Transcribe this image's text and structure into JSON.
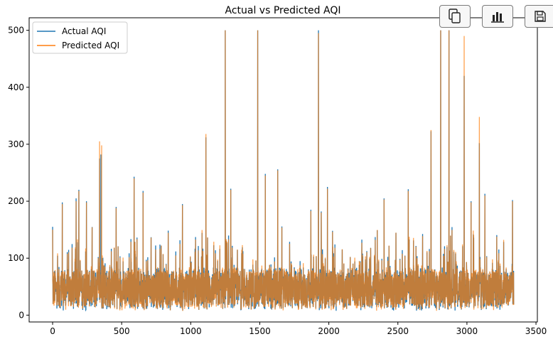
{
  "toolbar": {
    "buttons": [
      {
        "icon": "copy-icon"
      },
      {
        "icon": "bar-chart-icon"
      },
      {
        "icon": "save-icon"
      }
    ]
  },
  "chart_data": {
    "type": "line",
    "title": "Actual vs Predicted AQI",
    "xlabel": "",
    "ylabel": "",
    "xlim": [
      -170,
      3510
    ],
    "ylim": [
      -12,
      522
    ],
    "xticks": [
      0,
      500,
      1000,
      1500,
      2000,
      2500,
      3000,
      3500
    ],
    "yticks": [
      0,
      100,
      200,
      300,
      400,
      500
    ],
    "grid": false,
    "legend": {
      "position": "upper-left"
    },
    "n_points": 3340,
    "baseline_range": [
      12,
      80
    ],
    "series": [
      {
        "name": "Actual AQI",
        "color": "#1f77b4",
        "peaks": [
          [
            0,
            155
          ],
          [
            70,
            198
          ],
          [
            170,
            205
          ],
          [
            190,
            220
          ],
          [
            245,
            200
          ],
          [
            340,
            275
          ],
          [
            350,
            282
          ],
          [
            460,
            190
          ],
          [
            590,
            243
          ],
          [
            655,
            218
          ],
          [
            940,
            195
          ],
          [
            1110,
            312
          ],
          [
            1250,
            500
          ],
          [
            1290,
            222
          ],
          [
            1485,
            500
          ],
          [
            1540,
            248
          ],
          [
            1630,
            256
          ],
          [
            1870,
            185
          ],
          [
            1925,
            500
          ],
          [
            1945,
            182
          ],
          [
            1990,
            225
          ],
          [
            2400,
            205
          ],
          [
            2575,
            221
          ],
          [
            2740,
            323
          ],
          [
            2810,
            500
          ],
          [
            2870,
            500
          ],
          [
            2980,
            420
          ],
          [
            3030,
            200
          ],
          [
            3090,
            302
          ],
          [
            3130,
            213
          ],
          [
            3330,
            202
          ]
        ]
      },
      {
        "name": "Predicted AQI",
        "color": "#ff7f0e",
        "peaks": [
          [
            0,
            150
          ],
          [
            70,
            195
          ],
          [
            170,
            200
          ],
          [
            190,
            218
          ],
          [
            245,
            198
          ],
          [
            340,
            305
          ],
          [
            355,
            298
          ],
          [
            460,
            188
          ],
          [
            590,
            240
          ],
          [
            655,
            215
          ],
          [
            940,
            193
          ],
          [
            1110,
            318
          ],
          [
            1250,
            500
          ],
          [
            1290,
            220
          ],
          [
            1485,
            500
          ],
          [
            1540,
            245
          ],
          [
            1630,
            254
          ],
          [
            1870,
            183
          ],
          [
            1925,
            495
          ],
          [
            1945,
            180
          ],
          [
            1990,
            222
          ],
          [
            2400,
            203
          ],
          [
            2575,
            218
          ],
          [
            2740,
            325
          ],
          [
            2810,
            500
          ],
          [
            2870,
            500
          ],
          [
            2980,
            490
          ],
          [
            3030,
            198
          ],
          [
            3090,
            348
          ],
          [
            3130,
            210
          ],
          [
            3330,
            200
          ]
        ]
      }
    ]
  }
}
